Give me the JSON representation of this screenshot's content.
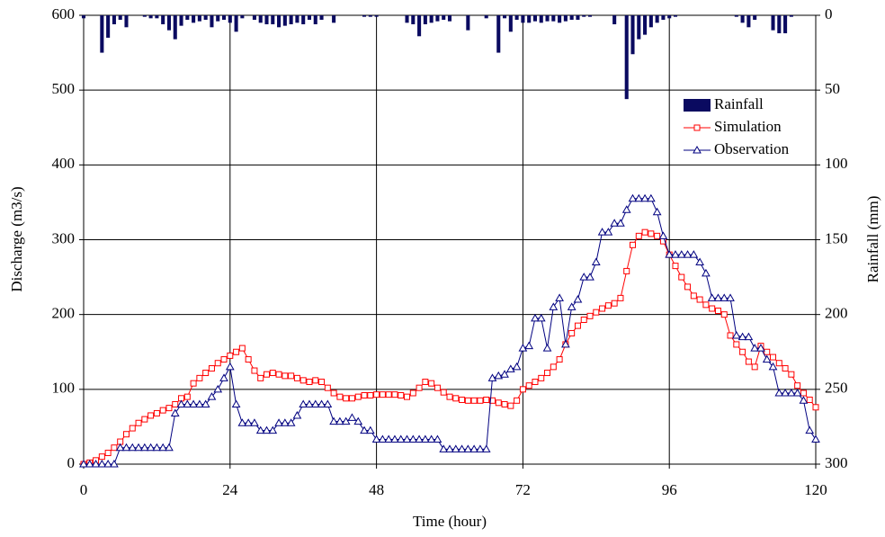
{
  "chart_data": {
    "type": "hydrograph",
    "x_label": "Time (hour)",
    "y_label": "Discharge (m3/s)",
    "y2_label": "Rainfall (mm)",
    "x": [
      0,
      1,
      2,
      3,
      4,
      5,
      6,
      7,
      8,
      9,
      10,
      11,
      12,
      13,
      14,
      15,
      16,
      17,
      18,
      19,
      20,
      21,
      22,
      23,
      24,
      25,
      26,
      27,
      28,
      29,
      30,
      31,
      32,
      33,
      34,
      35,
      36,
      37,
      38,
      39,
      40,
      41,
      42,
      43,
      44,
      45,
      46,
      47,
      48,
      49,
      50,
      51,
      52,
      53,
      54,
      55,
      56,
      57,
      58,
      59,
      60,
      61,
      62,
      63,
      64,
      65,
      66,
      67,
      68,
      69,
      70,
      71,
      72,
      73,
      74,
      75,
      76,
      77,
      78,
      79,
      80,
      81,
      82,
      83,
      84,
      85,
      86,
      87,
      88,
      89,
      90,
      91,
      92,
      93,
      94,
      95,
      96,
      97,
      98,
      99,
      100,
      101,
      102,
      103,
      104,
      105,
      106,
      107,
      108,
      109,
      110,
      111,
      112,
      113,
      114,
      115,
      116,
      117,
      118,
      119,
      120
    ],
    "series": [
      {
        "name": "Rainfall",
        "kind": "bar",
        "axis": "y2",
        "color": "#0a0a60",
        "values": [
          2,
          0,
          0,
          25,
          15,
          6,
          3,
          8,
          0,
          0,
          1,
          2,
          2,
          6,
          10,
          16,
          7,
          3,
          5,
          4,
          3,
          8,
          4,
          3,
          5,
          11,
          2,
          0,
          3,
          5,
          6,
          6,
          8,
          7,
          6,
          5,
          6,
          3,
          6,
          3,
          0,
          5,
          0,
          0,
          0,
          0,
          1,
          1,
          1,
          0,
          0,
          0,
          0,
          5,
          6,
          14,
          6,
          5,
          4,
          3,
          4,
          0,
          0,
          10,
          0,
          0,
          2,
          0,
          25,
          2,
          11,
          3,
          5,
          5,
          4,
          5,
          4,
          4,
          5,
          4,
          3,
          3,
          1,
          1,
          0,
          0,
          0,
          6,
          0,
          56,
          26,
          16,
          13,
          8,
          5,
          3,
          2,
          1,
          0,
          0,
          0,
          0,
          0,
          0,
          0,
          0,
          0,
          1,
          5,
          8,
          3,
          0,
          0,
          10,
          12,
          12,
          1,
          0,
          0,
          0,
          0
        ]
      },
      {
        "name": "Simulation",
        "kind": "line",
        "marker": "square",
        "color": "#ff0000",
        "values": [
          0,
          2,
          5,
          10,
          15,
          22,
          30,
          40,
          48,
          55,
          60,
          65,
          68,
          72,
          75,
          80,
          88,
          90,
          108,
          115,
          122,
          128,
          135,
          140,
          145,
          150,
          155,
          140,
          125,
          115,
          120,
          122,
          120,
          118,
          118,
          115,
          112,
          110,
          112,
          110,
          102,
          95,
          90,
          88,
          88,
          90,
          92,
          92,
          93,
          93,
          93,
          93,
          92,
          90,
          95,
          102,
          110,
          108,
          102,
          96,
          90,
          88,
          86,
          85,
          85,
          85,
          86,
          85,
          82,
          80,
          78,
          85,
          100,
          105,
          110,
          115,
          122,
          130,
          140,
          160,
          175,
          185,
          193,
          198,
          203,
          208,
          212,
          215,
          222,
          258,
          293,
          305,
          310,
          308,
          305,
          298,
          280,
          265,
          250,
          237,
          225,
          220,
          213,
          208,
          205,
          200,
          172,
          160,
          150,
          137,
          130,
          158,
          150,
          143,
          135,
          128,
          120,
          105,
          95,
          86,
          76
        ]
      },
      {
        "name": "Observation",
        "kind": "line",
        "marker": "triangle",
        "color": "#000080",
        "values": [
          0,
          0,
          0,
          0,
          0,
          0,
          22,
          22,
          22,
          22,
          22,
          22,
          22,
          22,
          22,
          68,
          80,
          80,
          80,
          80,
          80,
          90,
          100,
          115,
          130,
          80,
          55,
          55,
          55,
          45,
          45,
          45,
          55,
          55,
          55,
          65,
          80,
          80,
          80,
          80,
          80,
          57,
          57,
          57,
          62,
          57,
          45,
          45,
          33,
          33,
          33,
          33,
          33,
          33,
          33,
          33,
          33,
          33,
          33,
          20,
          20,
          20,
          20,
          20,
          20,
          20,
          20,
          115,
          118,
          120,
          127,
          130,
          155,
          158,
          195,
          195,
          155,
          210,
          222,
          160,
          210,
          220,
          250,
          250,
          270,
          310,
          310,
          322,
          322,
          340,
          355,
          355,
          355,
          355,
          337,
          305,
          280,
          280,
          280,
          280,
          280,
          270,
          255,
          222,
          222,
          222,
          222,
          172,
          170,
          170,
          155,
          155,
          140,
          130,
          95,
          95,
          95,
          95,
          85,
          45,
          33
        ]
      }
    ],
    "xlim": [
      0,
      120
    ],
    "xticks": [
      0,
      24,
      48,
      72,
      96,
      120
    ],
    "ylim": [
      0,
      600
    ],
    "yticks": [
      0,
      100,
      200,
      300,
      400,
      500,
      600
    ],
    "y2lim": [
      0,
      300
    ],
    "y2ticks": [
      0,
      50,
      100,
      150,
      200,
      250,
      300
    ],
    "y2_inverted": true,
    "grid": true,
    "legend": "upper right"
  }
}
